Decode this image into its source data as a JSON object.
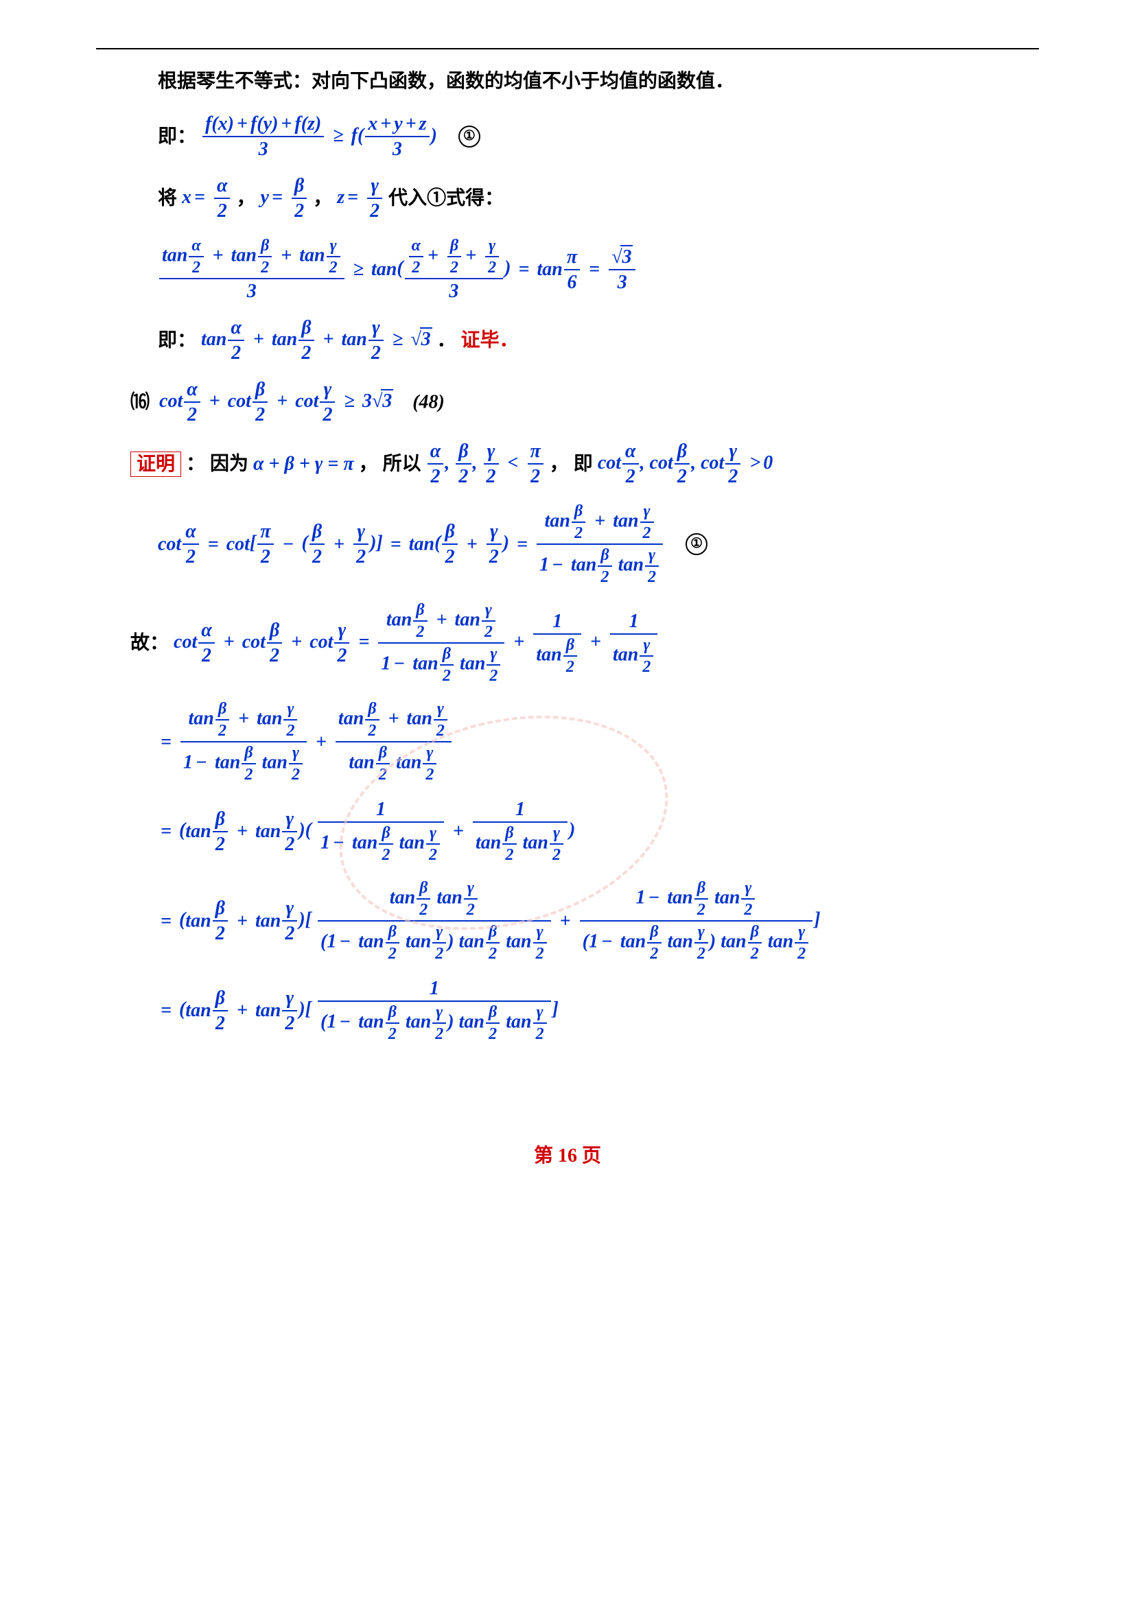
{
  "colors": {
    "blue": "#0033cc",
    "red": "#d00000",
    "black": "#000000",
    "watermark": "#f5c4c0"
  },
  "page_number_label": "第   16   页",
  "text": {
    "jensen": "根据琴生不等式：对向下凸函数，函数的均值不小于均值的函数值．",
    "ji": "即：",
    "jiang": "将 ",
    "dairu": " 代入①式得：",
    "zhengbi": "证毕．",
    "item16": "⒃",
    "ref48": "(48)",
    "zhengming": "证明",
    "yinwei": "：  因为 ",
    "suoyi": "，  所以 ",
    "ji2": "，   即 ",
    "gu": "故：",
    "circ1": "①"
  },
  "math": {
    "vars": {
      "x": "x",
      "y": "y",
      "z": "z",
      "a": "α",
      "b": "β",
      "g": "γ",
      "pi": "π"
    },
    "nums": {
      "2": "2",
      "3": "3",
      "6": "6",
      "0": "0",
      "1": "1"
    },
    "fn": {
      "f": "f",
      "tan": "tan",
      "cot": "cot"
    },
    "ops": {
      "ge": "≥",
      "eq": "=",
      "plus": "+",
      "minus": "−",
      "lt": "<",
      "gt": ">",
      "comma": ",",
      "times": ""
    },
    "sqrt3": "3",
    "three_sqrt3": "3",
    "sum_abg_pi": "α + β + γ = π"
  }
}
